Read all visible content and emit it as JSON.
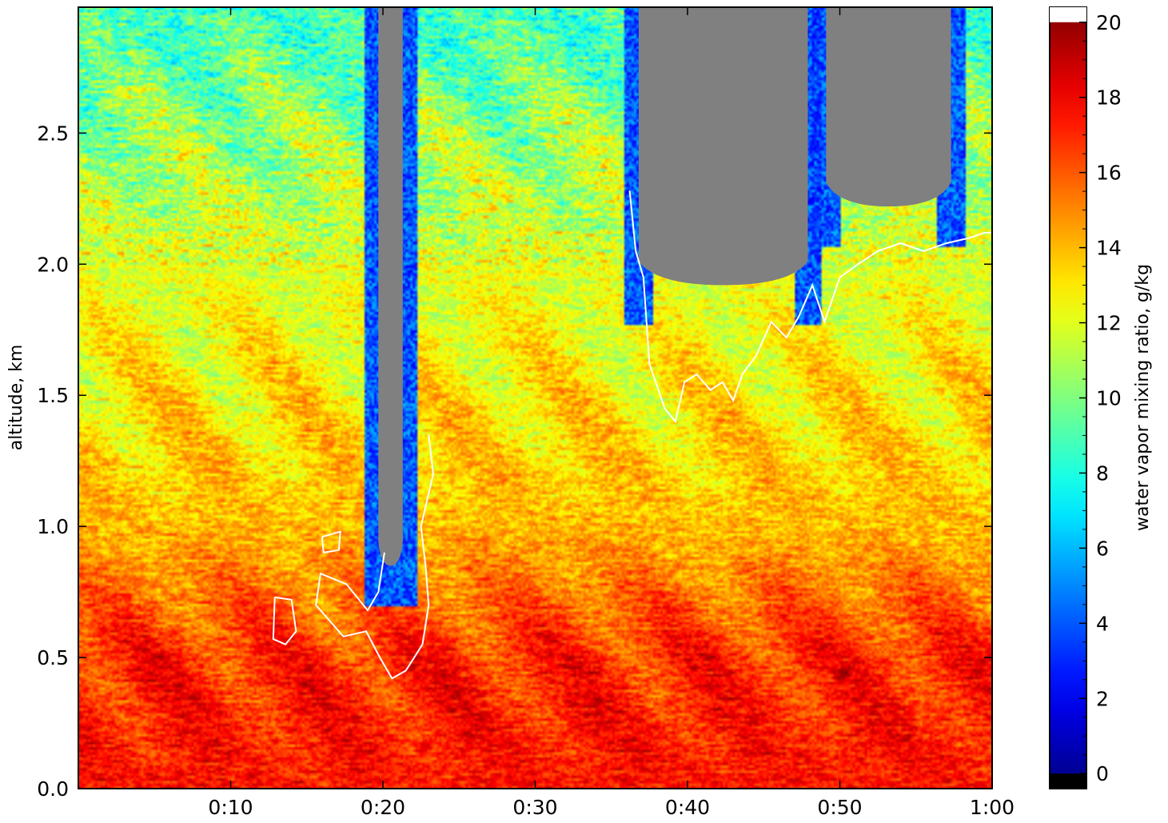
{
  "chart_data": {
    "type": "heatmap",
    "title": "",
    "xlabel": "",
    "ylabel": "altitude, km",
    "colorbar_label": "water vapor mixing ratio, g/kg",
    "colormap": "jet",
    "x_ticks": [
      "0:10",
      "0:20",
      "0:30",
      "0:40",
      "0:50",
      "1:00"
    ],
    "x_tick_minutes": [
      10,
      20,
      30,
      40,
      50,
      60
    ],
    "xlim_minutes": [
      0,
      60
    ],
    "y_ticks": [
      "0.0",
      "0.5",
      "1.0",
      "1.5",
      "2.0",
      "2.5"
    ],
    "y_tick_values": [
      0.0,
      0.5,
      1.0,
      1.5,
      2.0,
      2.5
    ],
    "ylim_km": [
      0,
      2.98
    ],
    "colorbar_ticks": [
      "0",
      "2",
      "4",
      "6",
      "8",
      "10",
      "12",
      "14",
      "16",
      "18",
      "20"
    ],
    "colorbar_tick_values": [
      0,
      2,
      4,
      6,
      8,
      10,
      12,
      14,
      16,
      18,
      20
    ],
    "colorbar_range": [
      -0.4,
      20.4
    ],
    "no_data_color": "#808080",
    "contour_color": "#ffffff",
    "mean_profile": [
      {
        "alt": 0.0,
        "value": 17.5
      },
      {
        "alt": 0.5,
        "value": 17.0
      },
      {
        "alt": 0.75,
        "value": 15.5
      },
      {
        "alt": 1.0,
        "value": 14.0
      },
      {
        "alt": 1.5,
        "value": 13.0
      },
      {
        "alt": 2.0,
        "value": 12.0
      },
      {
        "alt": 2.5,
        "value": 10.5
      },
      {
        "alt": 3.0,
        "value": 8.5
      }
    ],
    "no_data_regions": [
      {
        "x_start_min": 19.7,
        "x_end_min": 21.3,
        "alt_from_km": 0.85,
        "alt_to_km": 2.98
      },
      {
        "x_start_min": 36.8,
        "x_end_min": 47.9,
        "alt_from_km": 1.92,
        "alt_to_km": 2.98
      },
      {
        "x_start_min": 49.1,
        "x_end_min": 57.3,
        "alt_from_km": 2.22,
        "alt_to_km": 2.98
      }
    ]
  }
}
